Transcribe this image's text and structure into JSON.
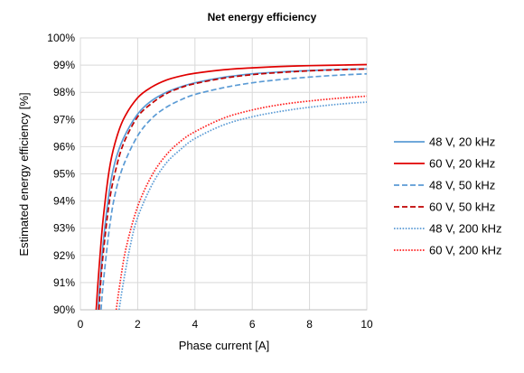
{
  "chart_data": {
    "type": "line",
    "title": "Net energy efficiency",
    "xlabel": "Phase current [A]",
    "ylabel": "Estimated energy efficiency [%]",
    "xlim": [
      0,
      10
    ],
    "ylim": [
      90,
      100
    ],
    "x_ticks": [
      0,
      2,
      4,
      6,
      8,
      10
    ],
    "y_ticks": [
      90,
      91,
      92,
      93,
      94,
      95,
      96,
      97,
      98,
      99,
      100
    ],
    "y_tick_suffix": "%",
    "grid": true,
    "legend_position": "right",
    "series": [
      {
        "name": "48 V, 20 kHz",
        "color": "#5B9BD5",
        "dash": "solid",
        "points": [
          [
            0.62,
            90.0
          ],
          [
            0.7,
            91.2
          ],
          [
            0.8,
            92.5
          ],
          [
            1.0,
            94.3
          ],
          [
            1.2,
            95.4
          ],
          [
            1.5,
            96.3
          ],
          [
            2.0,
            97.2
          ],
          [
            2.5,
            97.7
          ],
          [
            3.0,
            98.0
          ],
          [
            3.5,
            98.2
          ],
          [
            4.0,
            98.35
          ],
          [
            5.0,
            98.55
          ],
          [
            6.0,
            98.68
          ],
          [
            7.0,
            98.75
          ],
          [
            8.0,
            98.8
          ],
          [
            9.0,
            98.84
          ],
          [
            10.0,
            98.86
          ]
        ]
      },
      {
        "name": "60 V, 20 kHz",
        "color": "#E00000",
        "dash": "solid",
        "points": [
          [
            0.55,
            90.0
          ],
          [
            0.6,
            90.8
          ],
          [
            0.7,
            92.2
          ],
          [
            0.8,
            93.4
          ],
          [
            1.0,
            95.1
          ],
          [
            1.2,
            96.1
          ],
          [
            1.5,
            97.0
          ],
          [
            2.0,
            97.8
          ],
          [
            2.5,
            98.2
          ],
          [
            3.0,
            98.45
          ],
          [
            3.5,
            98.6
          ],
          [
            4.0,
            98.7
          ],
          [
            5.0,
            98.83
          ],
          [
            6.0,
            98.9
          ],
          [
            7.0,
            98.95
          ],
          [
            8.0,
            98.98
          ],
          [
            9.0,
            99.0
          ],
          [
            10.0,
            99.02
          ]
        ]
      },
      {
        "name": "48 V, 50 kHz",
        "color": "#5B9BD5",
        "dash": "dashed",
        "points": [
          [
            0.72,
            90.0
          ],
          [
            0.8,
            91.0
          ],
          [
            1.0,
            92.9
          ],
          [
            1.2,
            94.2
          ],
          [
            1.5,
            95.3
          ],
          [
            2.0,
            96.4
          ],
          [
            2.5,
            97.05
          ],
          [
            3.0,
            97.45
          ],
          [
            3.5,
            97.72
          ],
          [
            4.0,
            97.92
          ],
          [
            5.0,
            98.17
          ],
          [
            6.0,
            98.35
          ],
          [
            7.0,
            98.47
          ],
          [
            8.0,
            98.56
          ],
          [
            9.0,
            98.63
          ],
          [
            10.0,
            98.68
          ]
        ]
      },
      {
        "name": "60 V, 50 kHz",
        "color": "#C00000",
        "dash": "dashed",
        "points": [
          [
            0.65,
            90.0
          ],
          [
            0.7,
            90.9
          ],
          [
            0.8,
            92.1
          ],
          [
            1.0,
            93.9
          ],
          [
            1.2,
            95.0
          ],
          [
            1.5,
            96.1
          ],
          [
            2.0,
            97.1
          ],
          [
            2.5,
            97.6
          ],
          [
            3.0,
            97.95
          ],
          [
            3.5,
            98.17
          ],
          [
            4.0,
            98.32
          ],
          [
            5.0,
            98.52
          ],
          [
            6.0,
            98.65
          ],
          [
            7.0,
            98.73
          ],
          [
            8.0,
            98.79
          ],
          [
            9.0,
            98.83
          ],
          [
            10.0,
            98.86
          ]
        ]
      },
      {
        "name": "48 V, 200 kHz",
        "color": "#5B9BD5",
        "dash": "dotted",
        "points": [
          [
            1.35,
            90.0
          ],
          [
            1.5,
            91.0
          ],
          [
            1.75,
            92.4
          ],
          [
            2.0,
            93.4
          ],
          [
            2.5,
            94.6
          ],
          [
            3.0,
            95.4
          ],
          [
            3.5,
            95.9
          ],
          [
            4.0,
            96.3
          ],
          [
            5.0,
            96.8
          ],
          [
            6.0,
            97.1
          ],
          [
            7.0,
            97.3
          ],
          [
            8.0,
            97.45
          ],
          [
            9.0,
            97.56
          ],
          [
            10.0,
            97.64
          ]
        ]
      },
      {
        "name": "60 V, 200 kHz",
        "color": "#FF2020",
        "dash": "dotted",
        "points": [
          [
            1.25,
            90.0
          ],
          [
            1.4,
            91.1
          ],
          [
            1.6,
            92.3
          ],
          [
            2.0,
            93.8
          ],
          [
            2.5,
            94.95
          ],
          [
            3.0,
            95.7
          ],
          [
            3.5,
            96.2
          ],
          [
            4.0,
            96.55
          ],
          [
            5.0,
            97.05
          ],
          [
            6.0,
            97.35
          ],
          [
            7.0,
            97.55
          ],
          [
            8.0,
            97.68
          ],
          [
            9.0,
            97.78
          ],
          [
            10.0,
            97.86
          ]
        ]
      }
    ]
  }
}
